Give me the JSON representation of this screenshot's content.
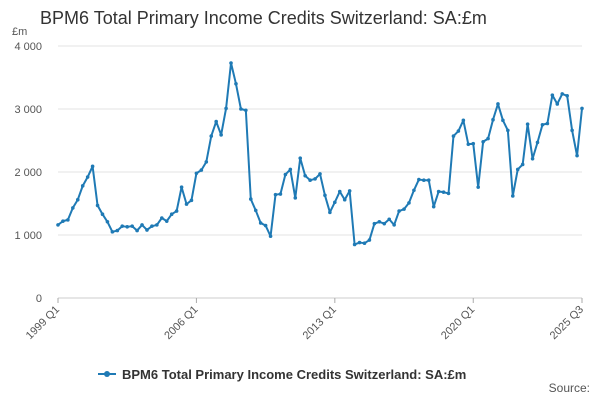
{
  "chart_data": {
    "type": "line",
    "title": "BPM6 Total Primary Income Credits Switzerland: SA:£m",
    "y_unit": "£m",
    "source_label": "Source:",
    "ylim": [
      0,
      4000
    ],
    "y_ticks": [
      {
        "value": 0,
        "label": "0"
      },
      {
        "value": 1000,
        "label": "1 000"
      },
      {
        "value": 2000,
        "label": "2 000"
      },
      {
        "value": 3000,
        "label": "3 000"
      },
      {
        "value": 4000,
        "label": "4 000"
      }
    ],
    "x_ticks": [
      {
        "index": 0,
        "label": "1999 Q1"
      },
      {
        "index": 28,
        "label": "2006 Q1"
      },
      {
        "index": 56,
        "label": "2013 Q1"
      },
      {
        "index": 84,
        "label": "2020 Q1"
      },
      {
        "index": 106,
        "label": "2025 Q3"
      }
    ],
    "x_start": "1999 Q1",
    "x_end": "2025 Q3",
    "grid": true,
    "legend_position": "bottom",
    "series": [
      {
        "name": "BPM6 Total Primary Income Credits Switzerland: SA:£m",
        "color": "#1f7ab5",
        "values": [
          1160,
          1220,
          1240,
          1430,
          1560,
          1780,
          1920,
          2090,
          1470,
          1330,
          1210,
          1050,
          1070,
          1140,
          1130,
          1140,
          1070,
          1160,
          1080,
          1140,
          1160,
          1270,
          1220,
          1330,
          1380,
          1760,
          1490,
          1550,
          1980,
          2030,
          2160,
          2570,
          2800,
          2590,
          3010,
          3730,
          3400,
          3000,
          2980,
          1570,
          1390,
          1190,
          1150,
          980,
          1640,
          1650,
          1960,
          2040,
          1590,
          2220,
          1940,
          1870,
          1890,
          1970,
          1630,
          1360,
          1520,
          1690,
          1560,
          1700,
          850,
          880,
          870,
          920,
          1180,
          1210,
          1180,
          1250,
          1160,
          1380,
          1410,
          1510,
          1710,
          1880,
          1870,
          1870,
          1450,
          1690,
          1680,
          1660,
          2570,
          2650,
          2820,
          2440,
          2450,
          1760,
          2480,
          2530,
          2830,
          3080,
          2820,
          2660,
          1620,
          2040,
          2120,
          2760,
          2210,
          2470,
          2750,
          2770,
          3220,
          3080,
          3240,
          3210,
          2660,
          2260,
          3010
        ]
      }
    ]
  }
}
